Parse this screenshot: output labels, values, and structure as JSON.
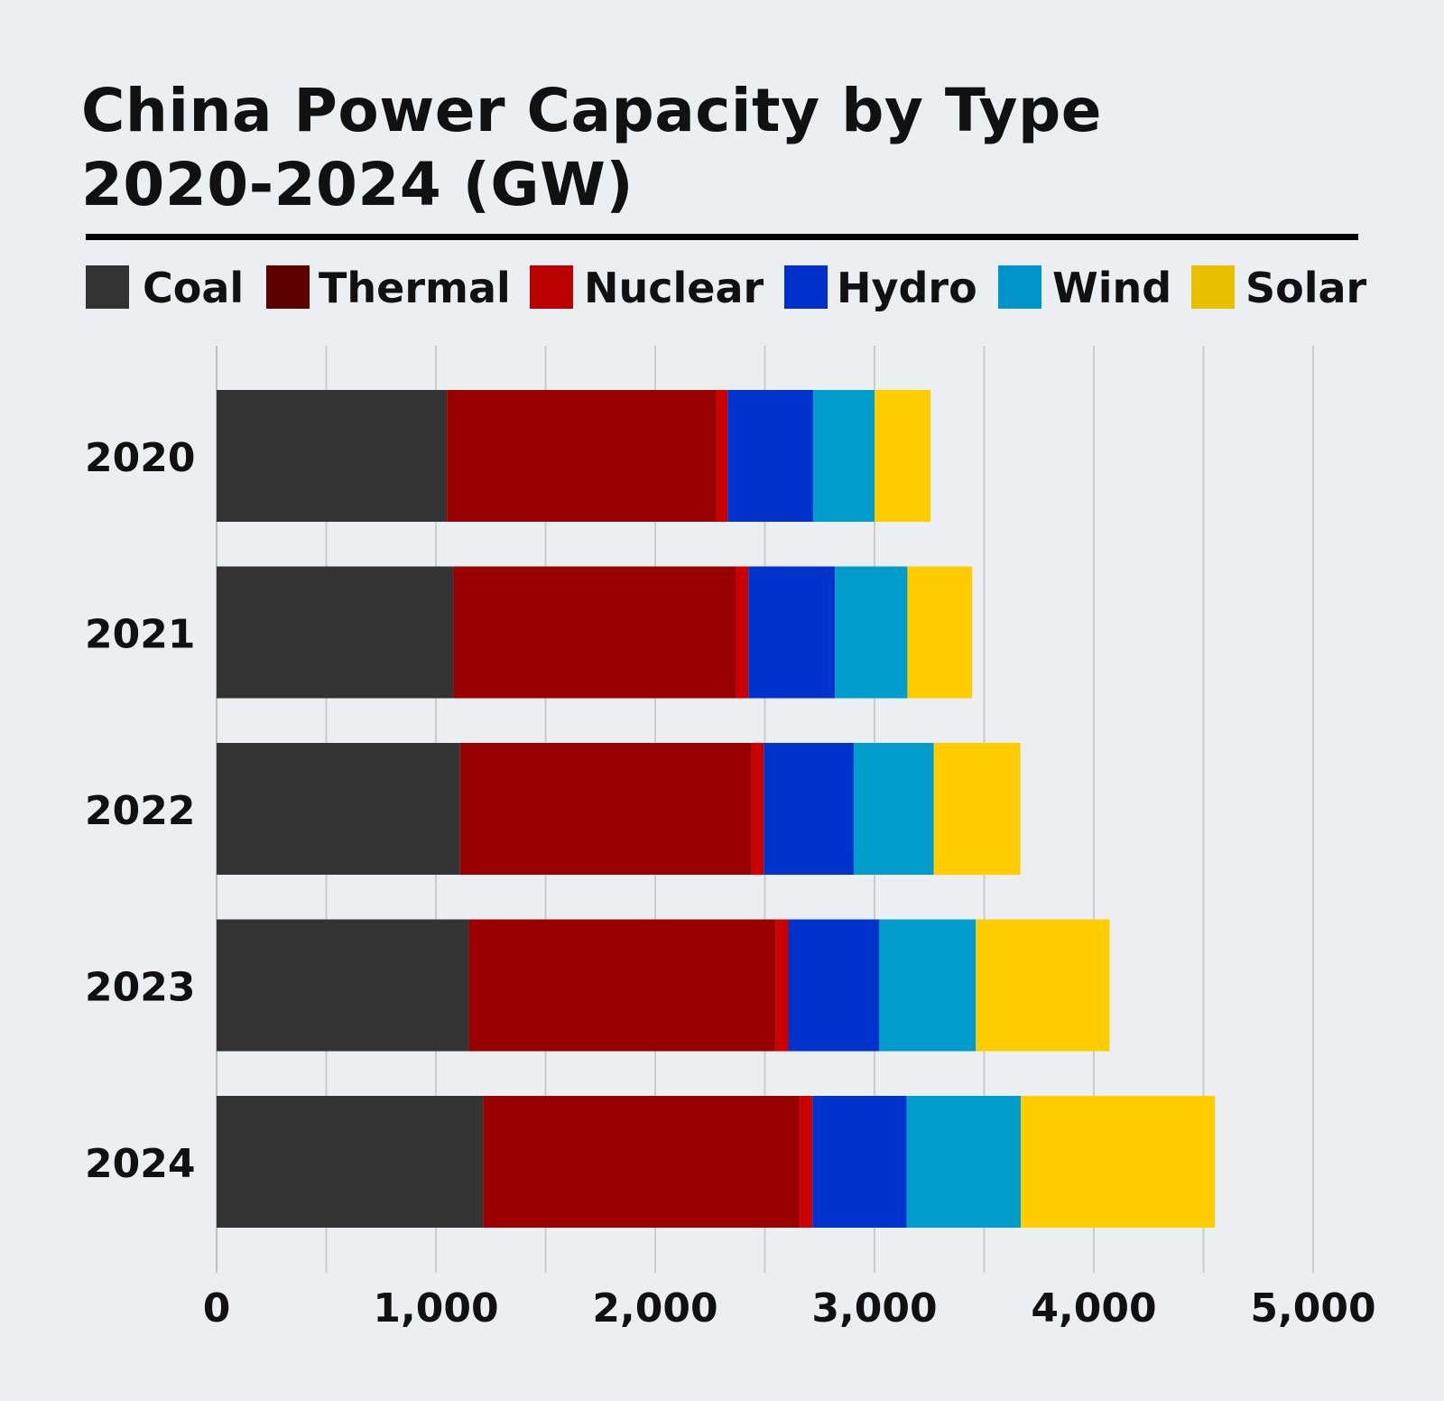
{
  "title_line1": "China Power Capacity by Type",
  "title_line2": "2020-2024 (GW)",
  "legend": [
    {
      "label": "Coal",
      "color": "#333333"
    },
    {
      "label": "Thermal",
      "color": "#5c0000"
    },
    {
      "label": "Nuclear",
      "color": "#bb0000"
    },
    {
      "label": "Hydro",
      "color": "#0030cc"
    },
    {
      "label": "Wind",
      "color": "#0094cc"
    },
    {
      "label": "Solar",
      "color": "#e8c000"
    }
  ],
  "chart_data": {
    "type": "bar",
    "orientation": "horizontal",
    "stacked": true,
    "title": "China Power Capacity by Type 2020-2024 (GW)",
    "categories": [
      "2020",
      "2021",
      "2022",
      "2023",
      "2024"
    ],
    "series": [
      {
        "name": "Coal",
        "color": "#333333",
        "values": [
          1050,
          1080,
          1110,
          1150,
          1215
        ]
      },
      {
        "name": "Thermal",
        "color": "#990000",
        "values": [
          1230,
          1290,
          1330,
          1400,
          1445
        ]
      },
      {
        "name": "Nuclear",
        "color": "#cc0000",
        "values": [
          50,
          55,
          55,
          57,
          57
        ]
      },
      {
        "name": "Hydro",
        "color": "#0033cc",
        "values": [
          390,
          395,
          410,
          415,
          430
        ]
      },
      {
        "name": "Wind",
        "color": "#009ccc",
        "values": [
          280,
          330,
          365,
          440,
          520
        ]
      },
      {
        "name": "Solar",
        "color": "#ffcc00",
        "values": [
          255,
          295,
          395,
          610,
          885
        ]
      }
    ],
    "x_ticks": [
      "0",
      "1,000",
      "2,000",
      "3,000",
      "4,000",
      "5,000"
    ],
    "xlim": [
      0,
      5000
    ],
    "grid": true,
    "grid_step": 500,
    "legend_position": "top"
  }
}
